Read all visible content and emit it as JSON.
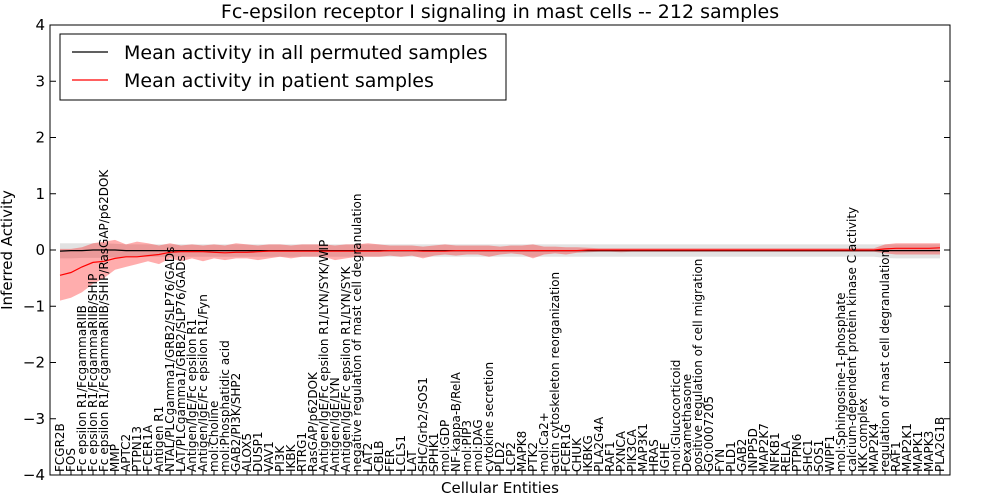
{
  "chart_data": {
    "type": "line",
    "title": "Fc-epsilon receptor I signaling in mast cells -- 212 samples",
    "xlabel": "Cellular Entities",
    "ylabel": "Inferred Activity",
    "ylim": [
      -4,
      4
    ],
    "yticks": [
      "4",
      "3",
      "2",
      "1",
      "0",
      "−1",
      "−2",
      "−3",
      "−4"
    ],
    "grid": false,
    "legend_position": "top-left",
    "categories": [
      "FCGR2B",
      "FOS",
      "Fc epsilon R1/FcgammaRIIB",
      "Fc epsilon R1/FcgammaRIIB/SHIP",
      "Fc epsilon R1/FcgammaRIIB/SHIP/RasGAP/p62DOK",
      "MMP",
      "APTC2",
      "PTPN13",
      "FCER1A",
      "Antigen R1",
      "NTAL/PLCgamma1/GRB2/SLP76/GADs",
      "LAT/PLCgamma1/GRB2/SLP76/GADs",
      "Antigen/IgE/Fc epsilon R1",
      "Antigen/IgE/Fc epsilon R1/Fyn",
      "mol:Choline",
      "mol:Phosphatidic acid",
      "GAB2/PI3K/SHP2",
      "ALOX5",
      "DUSP1",
      "VAV1",
      "PI3K",
      "IKBK",
      "RTRG1",
      "RasGAP/p62DOK",
      "Antigen/IgE/Fc epsilon R1/LYN/SYK/WIP",
      "Antigen/IgE/LYN",
      "Antigen/IgE/Fc epsilon R1/LYN/SYK",
      "negative regulation of mast cell degranulation",
      "LAT2",
      "CBLB",
      "FER",
      "LCLS1",
      "LAT",
      "SHC/Grb2/SOS1",
      "SPHK1",
      "mol:GDP",
      "NF-kappa-B/RelA",
      "mol:PIP3",
      "mol:DAG",
      "cytokine secretion",
      "PLD2",
      "LCP2",
      "MAPK8",
      "PTK2",
      "mol:Ca2+",
      "actin cytoskeleton reorganization",
      "FCER1G",
      "CHUK",
      "IKBKG",
      "PLA2G4A",
      "RAF1",
      "PXNCA",
      "PIK3CA",
      "MAP3K1",
      "HRAS",
      "IGHE",
      "mol:Glucocorticoid",
      "Dexamethasone",
      "positive regulation of cell migration",
      "GO:0007205",
      "FYN",
      "PLD1",
      "GAB2",
      "INPP5D",
      "MAP2K7",
      "NFKB1",
      "RELA",
      "PTPN6",
      "SHC1",
      "SOS1",
      "WIPF1",
      "mol:Sphingosine-1-phosphate",
      "calcium-dependent protein kinase C activity",
      "IKK complex",
      "MAP2K4",
      "regulation of mast cell degranulation",
      "RAF1",
      "MAP2K1",
      "MAPK1",
      "MAPK3",
      "PLA2G1B"
    ],
    "series": [
      {
        "name": "Mean activity in all permuted samples",
        "color": "#000000",
        "values": [
          -0.02,
          -0.01,
          -0.01,
          0.0,
          0.0,
          0.0,
          -0.01,
          -0.01,
          -0.01,
          -0.01,
          -0.01,
          -0.01,
          -0.01,
          -0.01,
          -0.01,
          -0.01,
          -0.01,
          -0.01,
          -0.01,
          -0.01,
          -0.01,
          -0.01,
          -0.01,
          -0.01,
          -0.01,
          -0.01,
          -0.01,
          -0.01,
          -0.01,
          -0.01,
          -0.01,
          -0.01,
          -0.01,
          -0.01,
          -0.01,
          -0.01,
          -0.01,
          -0.01,
          -0.01,
          -0.01,
          -0.01,
          -0.01,
          -0.01,
          -0.01,
          -0.01,
          -0.01,
          -0.01,
          -0.01,
          -0.01,
          -0.01,
          -0.01,
          -0.01,
          -0.01,
          -0.01,
          -0.01,
          -0.01,
          -0.01,
          -0.01,
          -0.01,
          -0.01,
          -0.01,
          -0.01,
          -0.01,
          -0.01,
          -0.01,
          -0.01,
          -0.01,
          -0.01,
          -0.01,
          -0.01,
          -0.01,
          -0.01,
          -0.01,
          -0.01,
          -0.01,
          -0.01,
          -0.01,
          -0.01,
          -0.01,
          -0.01,
          -0.01
        ],
        "band_low": [
          -0.15,
          -0.15,
          -0.14,
          -0.14,
          -0.14,
          -0.13,
          -0.13,
          -0.12,
          -0.12,
          -0.12,
          -0.12,
          -0.12,
          -0.12,
          -0.12,
          -0.12,
          -0.12,
          -0.12,
          -0.12,
          -0.12,
          -0.12,
          -0.12,
          -0.12,
          -0.12,
          -0.12,
          -0.12,
          -0.12,
          -0.12,
          -0.12,
          -0.12,
          -0.12,
          -0.12,
          -0.12,
          -0.12,
          -0.12,
          -0.12,
          -0.12,
          -0.12,
          -0.12,
          -0.12,
          -0.12,
          -0.12,
          -0.12,
          -0.12,
          -0.12,
          -0.12,
          -0.12,
          -0.12,
          -0.12,
          -0.12,
          -0.12,
          -0.12,
          -0.12,
          -0.12,
          -0.12,
          -0.12,
          -0.12,
          -0.12,
          -0.12,
          -0.12,
          -0.12,
          -0.12,
          -0.12,
          -0.12,
          -0.12,
          -0.12,
          -0.12,
          -0.12,
          -0.12,
          -0.12,
          -0.12,
          -0.12,
          -0.12,
          -0.12,
          -0.12,
          -0.12,
          -0.14,
          -0.15,
          -0.15,
          -0.15,
          -0.15,
          -0.15
        ],
        "band_high": [
          0.12,
          0.12,
          0.12,
          0.12,
          0.12,
          0.11,
          0.1,
          0.1,
          0.1,
          0.1,
          0.1,
          0.1,
          0.1,
          0.1,
          0.1,
          0.1,
          0.1,
          0.1,
          0.1,
          0.1,
          0.1,
          0.1,
          0.1,
          0.1,
          0.1,
          0.1,
          0.1,
          0.1,
          0.1,
          0.1,
          0.1,
          0.1,
          0.1,
          0.1,
          0.1,
          0.1,
          0.1,
          0.1,
          0.1,
          0.1,
          0.1,
          0.1,
          0.1,
          0.1,
          0.1,
          0.1,
          0.1,
          0.1,
          0.1,
          0.1,
          0.1,
          0.1,
          0.1,
          0.1,
          0.1,
          0.1,
          0.1,
          0.1,
          0.1,
          0.1,
          0.1,
          0.1,
          0.1,
          0.1,
          0.1,
          0.1,
          0.1,
          0.1,
          0.1,
          0.1,
          0.1,
          0.1,
          0.1,
          0.1,
          0.1,
          0.1,
          0.1,
          0.1,
          0.1,
          0.1,
          0.1
        ]
      },
      {
        "name": "Mean activity in patient samples",
        "color": "#ff0000",
        "values": [
          -0.45,
          -0.4,
          -0.3,
          -0.22,
          -0.2,
          -0.15,
          -0.12,
          -0.12,
          -0.1,
          -0.08,
          -0.04,
          -0.03,
          -0.03,
          -0.03,
          -0.04,
          -0.05,
          -0.04,
          -0.04,
          -0.03,
          -0.02,
          -0.02,
          -0.02,
          -0.02,
          -0.02,
          -0.02,
          -0.02,
          -0.02,
          -0.02,
          -0.02,
          -0.02,
          -0.01,
          -0.01,
          -0.01,
          -0.02,
          -0.02,
          -0.02,
          -0.01,
          -0.01,
          -0.01,
          -0.01,
          -0.01,
          -0.01,
          -0.01,
          -0.01,
          -0.01,
          -0.01,
          -0.01,
          -0.01,
          0.0,
          0.0,
          0.0,
          0.0,
          0.0,
          0.0,
          0.0,
          0.0,
          0.0,
          0.0,
          0.0,
          0.0,
          0.0,
          0.0,
          0.0,
          0.0,
          0.0,
          0.0,
          0.0,
          0.0,
          0.0,
          0.0,
          0.0,
          0.0,
          0.0,
          0.0,
          0.0,
          0.02,
          0.03,
          0.03,
          0.03,
          0.03,
          0.04
        ],
        "band_low": [
          -0.9,
          -0.85,
          -0.75,
          -0.6,
          -0.5,
          -0.35,
          -0.3,
          -0.25,
          -0.2,
          -0.25,
          -0.15,
          -0.2,
          -0.15,
          -0.2,
          -0.15,
          -0.18,
          -0.15,
          -0.15,
          -0.18,
          -0.15,
          -0.12,
          -0.15,
          -0.12,
          -0.12,
          -0.12,
          -0.18,
          -0.15,
          -0.12,
          -0.12,
          -0.12,
          -0.1,
          -0.12,
          -0.1,
          -0.15,
          -0.1,
          -0.08,
          -0.1,
          -0.08,
          -0.08,
          -0.12,
          -0.08,
          -0.06,
          -0.08,
          -0.15,
          -0.08,
          -0.06,
          -0.08,
          -0.05,
          -0.04,
          -0.03,
          -0.03,
          -0.04,
          -0.03,
          -0.03,
          -0.03,
          -0.03,
          -0.03,
          -0.03,
          -0.03,
          -0.03,
          -0.03,
          -0.03,
          -0.03,
          -0.03,
          -0.03,
          -0.03,
          -0.03,
          -0.03,
          -0.03,
          -0.03,
          -0.03,
          -0.03,
          -0.03,
          -0.03,
          -0.03,
          -0.06,
          -0.08,
          -0.08,
          -0.08,
          -0.08,
          -0.08
        ],
        "band_high": [
          0.02,
          0.02,
          0.05,
          0.12,
          0.15,
          0.18,
          0.1,
          0.15,
          0.12,
          0.08,
          0.12,
          0.08,
          0.1,
          0.08,
          0.1,
          0.08,
          0.12,
          0.1,
          0.08,
          0.1,
          0.1,
          0.08,
          0.1,
          0.1,
          0.1,
          0.08,
          0.1,
          0.1,
          0.12,
          0.1,
          0.08,
          0.08,
          0.08,
          0.06,
          0.08,
          0.1,
          0.08,
          0.08,
          0.08,
          0.08,
          0.06,
          0.08,
          0.08,
          0.1,
          0.06,
          0.06,
          0.05,
          0.05,
          0.04,
          0.03,
          0.03,
          0.03,
          0.03,
          0.03,
          0.03,
          0.03,
          0.03,
          0.03,
          0.03,
          0.03,
          0.03,
          0.03,
          0.03,
          0.03,
          0.03,
          0.03,
          0.03,
          0.03,
          0.03,
          0.03,
          0.03,
          0.03,
          0.03,
          0.03,
          0.03,
          0.1,
          0.12,
          0.12,
          0.12,
          0.12,
          0.12
        ]
      }
    ]
  }
}
